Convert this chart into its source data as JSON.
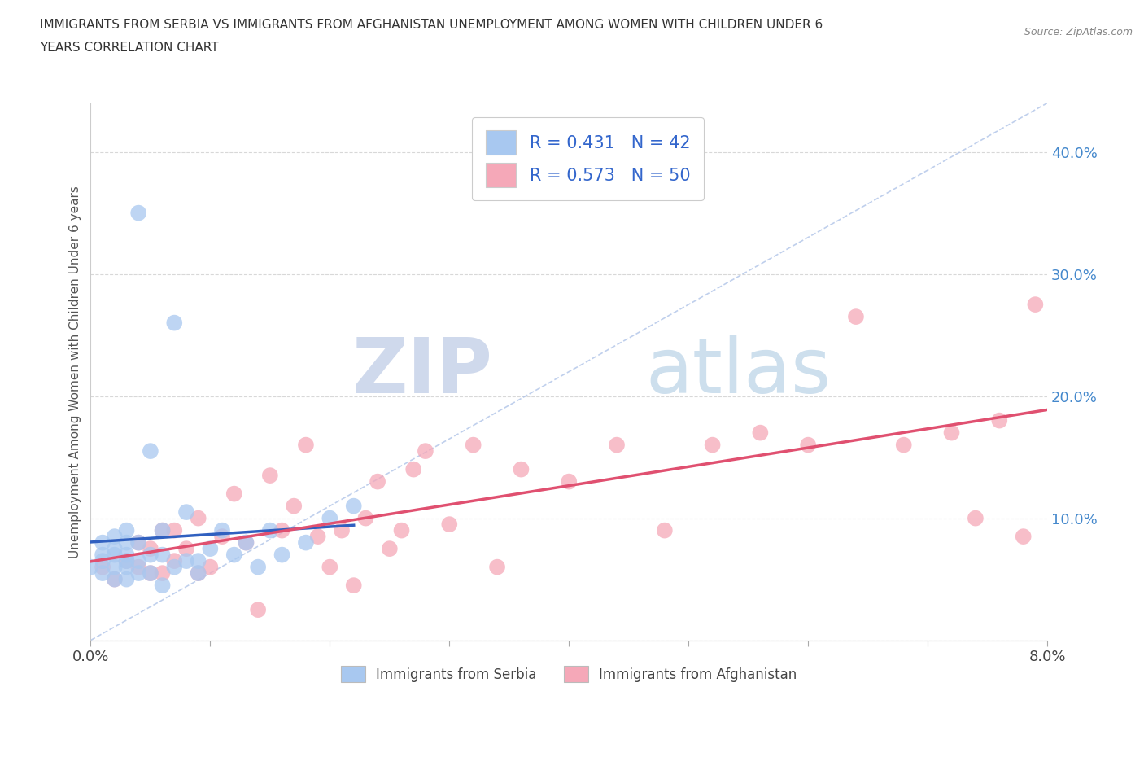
{
  "title_line1": "IMMIGRANTS FROM SERBIA VS IMMIGRANTS FROM AFGHANISTAN UNEMPLOYMENT AMONG WOMEN WITH CHILDREN UNDER 6",
  "title_line2": "YEARS CORRELATION CHART",
  "source": "Source: ZipAtlas.com",
  "ylabel": "Unemployment Among Women with Children Under 6 years",
  "xlim": [
    0.0,
    0.08
  ],
  "ylim": [
    0.0,
    0.44
  ],
  "serbia_color": "#a8c8f0",
  "afghanistan_color": "#f5a8b8",
  "serbia_R": 0.431,
  "serbia_N": 42,
  "afghanistan_R": 0.573,
  "afghanistan_N": 50,
  "diagonal_color": "#b0c4e8",
  "serbia_line_color": "#3060c0",
  "afghanistan_line_color": "#e05070",
  "watermark_zip": "ZIP",
  "watermark_atlas": "atlas",
  "background_color": "#ffffff",
  "grid_color": "#d8d8d8",
  "legend_text_color": "#3366cc",
  "ytick_color": "#4488cc",
  "serbia_x": [
    0.0,
    0.001,
    0.001,
    0.001,
    0.001,
    0.002,
    0.002,
    0.002,
    0.002,
    0.002,
    0.003,
    0.003,
    0.003,
    0.003,
    0.003,
    0.003,
    0.004,
    0.004,
    0.004,
    0.004,
    0.005,
    0.005,
    0.005,
    0.006,
    0.006,
    0.006,
    0.007,
    0.007,
    0.008,
    0.008,
    0.009,
    0.009,
    0.01,
    0.011,
    0.012,
    0.013,
    0.014,
    0.015,
    0.016,
    0.018,
    0.02,
    0.022
  ],
  "serbia_y": [
    0.06,
    0.055,
    0.065,
    0.07,
    0.08,
    0.05,
    0.06,
    0.07,
    0.075,
    0.085,
    0.05,
    0.06,
    0.065,
    0.07,
    0.08,
    0.09,
    0.055,
    0.065,
    0.08,
    0.35,
    0.055,
    0.07,
    0.155,
    0.045,
    0.07,
    0.09,
    0.06,
    0.26,
    0.065,
    0.105,
    0.055,
    0.065,
    0.075,
    0.09,
    0.07,
    0.08,
    0.06,
    0.09,
    0.07,
    0.08,
    0.1,
    0.11
  ],
  "afghanistan_x": [
    0.001,
    0.002,
    0.003,
    0.004,
    0.004,
    0.005,
    0.005,
    0.006,
    0.006,
    0.007,
    0.007,
    0.008,
    0.009,
    0.009,
    0.01,
    0.011,
    0.012,
    0.013,
    0.014,
    0.015,
    0.016,
    0.017,
    0.018,
    0.019,
    0.02,
    0.021,
    0.022,
    0.023,
    0.024,
    0.025,
    0.026,
    0.027,
    0.028,
    0.03,
    0.032,
    0.034,
    0.036,
    0.04,
    0.044,
    0.048,
    0.052,
    0.056,
    0.06,
    0.064,
    0.068,
    0.072,
    0.074,
    0.076,
    0.078,
    0.079
  ],
  "afghanistan_y": [
    0.06,
    0.05,
    0.065,
    0.06,
    0.08,
    0.055,
    0.075,
    0.055,
    0.09,
    0.065,
    0.09,
    0.075,
    0.055,
    0.1,
    0.06,
    0.085,
    0.12,
    0.08,
    0.025,
    0.135,
    0.09,
    0.11,
    0.16,
    0.085,
    0.06,
    0.09,
    0.045,
    0.1,
    0.13,
    0.075,
    0.09,
    0.14,
    0.155,
    0.095,
    0.16,
    0.06,
    0.14,
    0.13,
    0.16,
    0.09,
    0.16,
    0.17,
    0.16,
    0.265,
    0.16,
    0.17,
    0.1,
    0.18,
    0.085,
    0.275
  ]
}
